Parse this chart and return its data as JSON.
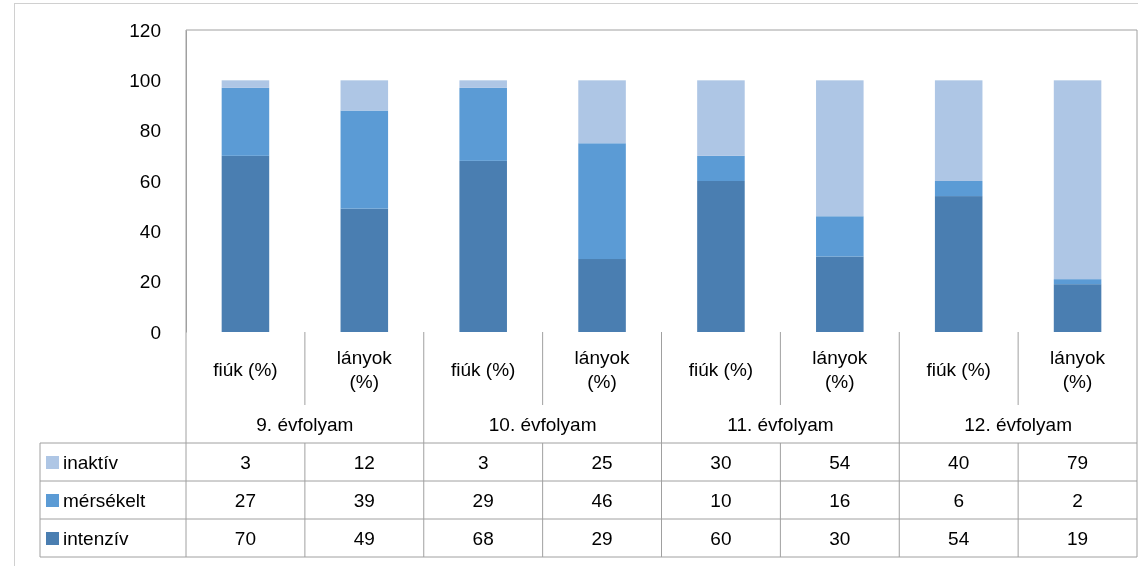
{
  "chart_data": {
    "type": "bar",
    "stacked": true,
    "categories": [
      "fiúk (%)",
      "lányok (%)",
      "fiúk (%)",
      "lányok (%)",
      "fiúk (%)",
      "lányok (%)",
      "fiúk (%)",
      "lányok (%)"
    ],
    "annotations": [
      "9. évfolyam",
      "10. évfolyam",
      "11. évfolyam",
      "12. évfolyam"
    ],
    "series": [
      {
        "name": "intenzív",
        "color": "#4a7eb1",
        "values": [
          70,
          49,
          68,
          29,
          60,
          30,
          54,
          19
        ]
      },
      {
        "name": "mérsékelt",
        "color": "#5b9bd5",
        "values": [
          27,
          39,
          29,
          46,
          10,
          16,
          6,
          2
        ]
      },
      {
        "name": "inaktív",
        "color": "#aec6e5",
        "values": [
          3,
          12,
          3,
          25,
          30,
          54,
          40,
          79
        ]
      }
    ],
    "ylim": [
      0,
      120
    ],
    "yticks": [
      0,
      20,
      40,
      60,
      80,
      100,
      120
    ],
    "grid": false,
    "legend": "bottom left",
    "data_labels": true
  }
}
